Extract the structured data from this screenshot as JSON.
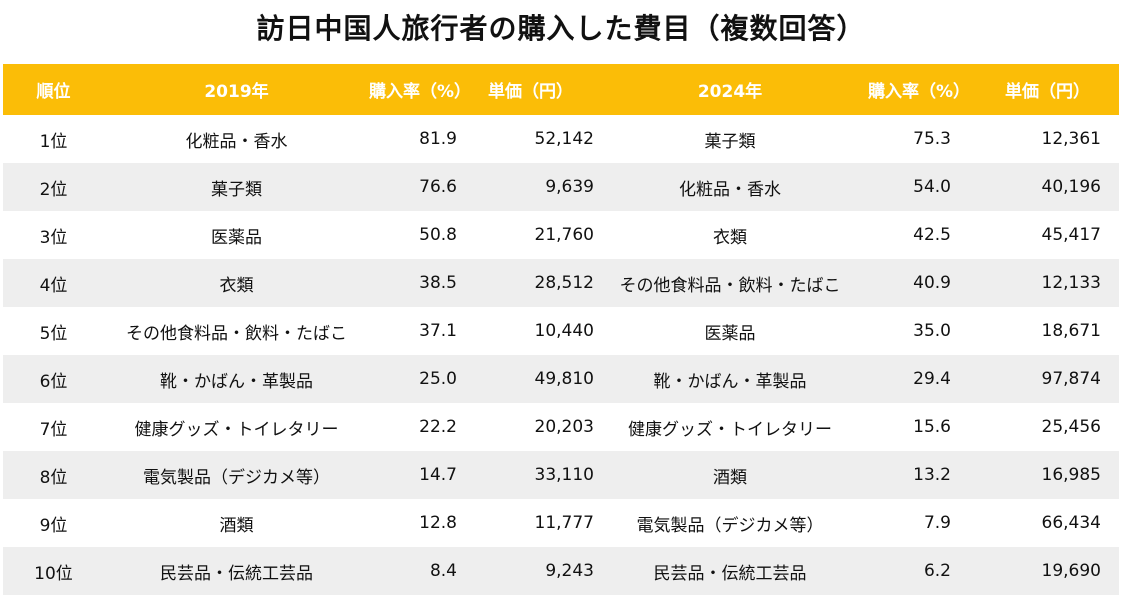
{
  "title": "訪日中国人旅行者の購入した費目（複数回答）",
  "colors": {
    "header_bg": "#fbbd07",
    "header_text": "#ffffff",
    "alt_row_bg": "#eeeeee"
  },
  "table": {
    "headers": [
      "順位",
      "2019年",
      "購入率（%）",
      "単価（円）",
      "2024年",
      "購入率（%）",
      "単価（円）"
    ],
    "rows": [
      [
        "1位",
        "化粧品・香水",
        "81.9",
        "52,142",
        "菓子類",
        "75.3",
        "12,361"
      ],
      [
        "2位",
        "菓子類",
        "76.6",
        "9,639",
        "化粧品・香水",
        "54.0",
        "40,196"
      ],
      [
        "3位",
        "医薬品",
        "50.8",
        "21,760",
        "衣類",
        "42.5",
        "45,417"
      ],
      [
        "4位",
        "衣類",
        "38.5",
        "28,512",
        "その他食料品・飲料・たばこ",
        "40.9",
        "12,133"
      ],
      [
        "5位",
        "その他食料品・飲料・たばこ",
        "37.1",
        "10,440",
        "医薬品",
        "35.0",
        "18,671"
      ],
      [
        "6位",
        "靴・かばん・革製品",
        "25.0",
        "49,810",
        "靴・かばん・革製品",
        "29.4",
        "97,874"
      ],
      [
        "7位",
        "健康グッズ・トイレタリー",
        "22.2",
        "20,203",
        "健康グッズ・トイレタリー",
        "15.6",
        "25,456"
      ],
      [
        "8位",
        "電気製品（デジカメ等）",
        "14.7",
        "33,110",
        "酒類",
        "13.2",
        "16,985"
      ],
      [
        "9位",
        "酒類",
        "12.8",
        "11,777",
        "電気製品（デジカメ等）",
        "7.9",
        "66,434"
      ],
      [
        "10位",
        "民芸品・伝統工芸品",
        "8.4",
        "9,243",
        "民芸品・伝統工芸品",
        "6.2",
        "19,690"
      ]
    ]
  }
}
